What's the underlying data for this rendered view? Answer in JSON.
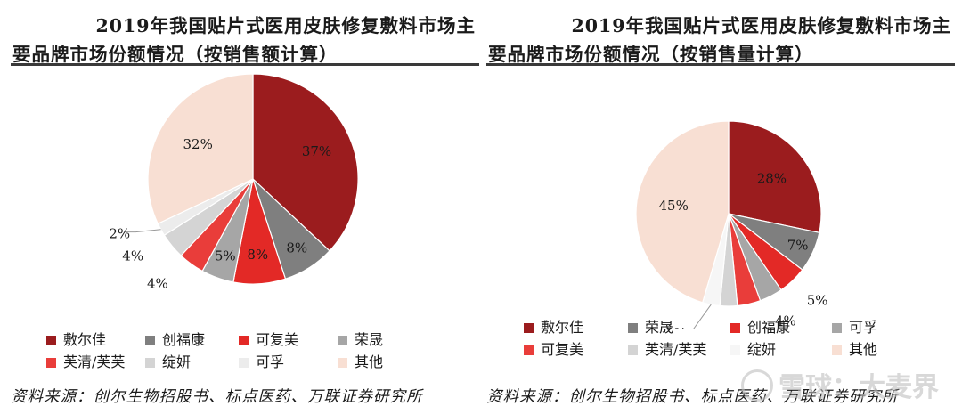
{
  "colors": {
    "brand_dark_red": "#9b1c1e",
    "gray_dark": "#7f7f7f",
    "red": "#e32926",
    "gray_light": "#a6a6a6",
    "gray_lighter": "#d4d4d4",
    "gray_faint": "#ececec",
    "near_white": "#f6f6f6",
    "peach": "#f8dfd3"
  },
  "left_panel": {
    "title_line1": "2019年我国贴片式医用皮肤修复敷料市场主",
    "title_line2": "要品牌市场份额情况（按销售额计算）",
    "source": "资料来源：创尔生物招股书、标点医药、万联证券研究所"
  },
  "right_panel": {
    "title_line1": "2019年我国贴片式医用皮肤修复敷料市场主",
    "title_line2": "要品牌市场份额情况（按销售量计算）",
    "source": "资料来源：创尔生物招股书、标点医药、万联证券研究所"
  },
  "watermark": {
    "text": "雪球：大麦界"
  },
  "chart_data": [
    {
      "type": "pie",
      "title": "2019年我国贴片式医用皮肤修复敷料市场主要品牌市场份额情况（按销售额计算）",
      "start_angle_deg": 0,
      "direction": "clockwise",
      "slices": [
        {
          "label": "敷尔佳",
          "value": 37,
          "display": "37%",
          "color": "#9b1c1e"
        },
        {
          "label": "创福康",
          "value": 8,
          "display": "8%",
          "color": "#7f7f7f"
        },
        {
          "label": "可复美",
          "value": 8,
          "display": "8%",
          "color": "#e32926"
        },
        {
          "label": "荣晟",
          "value": 5,
          "display": "5%",
          "color": "#a6a6a6"
        },
        {
          "label": "芙清/芙芙",
          "value": 4,
          "display": "4%",
          "color": "#e93d3a"
        },
        {
          "label": "绽妍",
          "value": 4,
          "display": "4%",
          "color": "#d4d4d4"
        },
        {
          "label": "可孚",
          "value": 2,
          "display": "2%",
          "color": "#ececec"
        },
        {
          "label": "其他",
          "value": 32,
          "display": "32%",
          "color": "#f8dfd3"
        }
      ],
      "legend_order": [
        "敷尔佳",
        "创福康",
        "可复美",
        "荣晟",
        "芙清/芙芙",
        "绽妍",
        "可孚",
        "其他"
      ]
    },
    {
      "type": "pie",
      "title": "2019年我国贴片式医用皮肤修复敷料市场主要品牌市场份额情况（按销售量计算）",
      "start_angle_deg": 0,
      "direction": "clockwise",
      "slices": [
        {
          "label": "敷尔佳",
          "value": 28,
          "display": "28%",
          "color": "#9b1c1e"
        },
        {
          "label": "荣晟",
          "value": 7,
          "display": "7%",
          "color": "#7f7f7f"
        },
        {
          "label": "创福康",
          "value": 5,
          "display": "5%",
          "color": "#e32926"
        },
        {
          "label": "可孚",
          "value": 4,
          "display": "4%",
          "color": "#a6a6a6"
        },
        {
          "label": "可复美",
          "value": 4,
          "display": "4%",
          "color": "#e93d3a"
        },
        {
          "label": "芙清/芙芙",
          "value": 3,
          "display": "3%",
          "color": "#d4d4d4"
        },
        {
          "label": "绽妍",
          "value": 3,
          "display": "3%",
          "color": "#f6f6f6"
        },
        {
          "label": "其他",
          "value": 45,
          "display": "45%",
          "color": "#f8dfd3"
        }
      ],
      "legend_order": [
        "敷尔佳",
        "荣晟",
        "创福康",
        "可孚",
        "可复美",
        "芙清/芙芙",
        "绽妍",
        "其他"
      ]
    }
  ]
}
